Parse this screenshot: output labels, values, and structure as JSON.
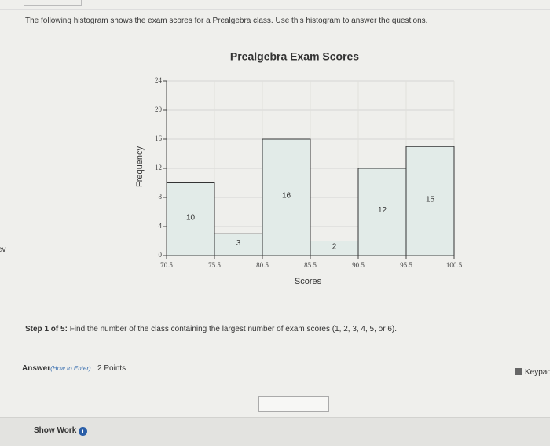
{
  "sidebar_fragment": "ev",
  "prompt": "The following histogram shows the exam scores for a Prealgebra class. Use this histogram to answer the questions.",
  "chart_data": {
    "type": "histogram",
    "title": "Prealgebra Exam Scores",
    "x_label": "Scores",
    "y_label": "Frequency",
    "bins": [
      70.5,
      75.5,
      80.5,
      85.5,
      90.5,
      95.5,
      100.5
    ],
    "values": [
      10,
      3,
      16,
      2,
      12,
      15
    ],
    "color": "#e2ebe8",
    "edge_color": "#333333",
    "xlim": [
      70.5,
      100.5
    ],
    "xticks": [
      70.5,
      75.5,
      80.5,
      85.5,
      90.5,
      95.5,
      100.5
    ],
    "ylim": [
      0,
      24
    ],
    "yticks": [
      0,
      4,
      8,
      12,
      16,
      20,
      24
    ],
    "grid": true
  },
  "step_label": "Step 1 of 5:",
  "step_text": "Find the number of the class containing the largest number of exam scores (1, 2, 3, 4, 5, or 6).",
  "answer_label": "Answer",
  "how_to_enter": "(How to Enter)",
  "points": "2 Points",
  "keypad": "Keypad",
  "show_work": "Show Work"
}
